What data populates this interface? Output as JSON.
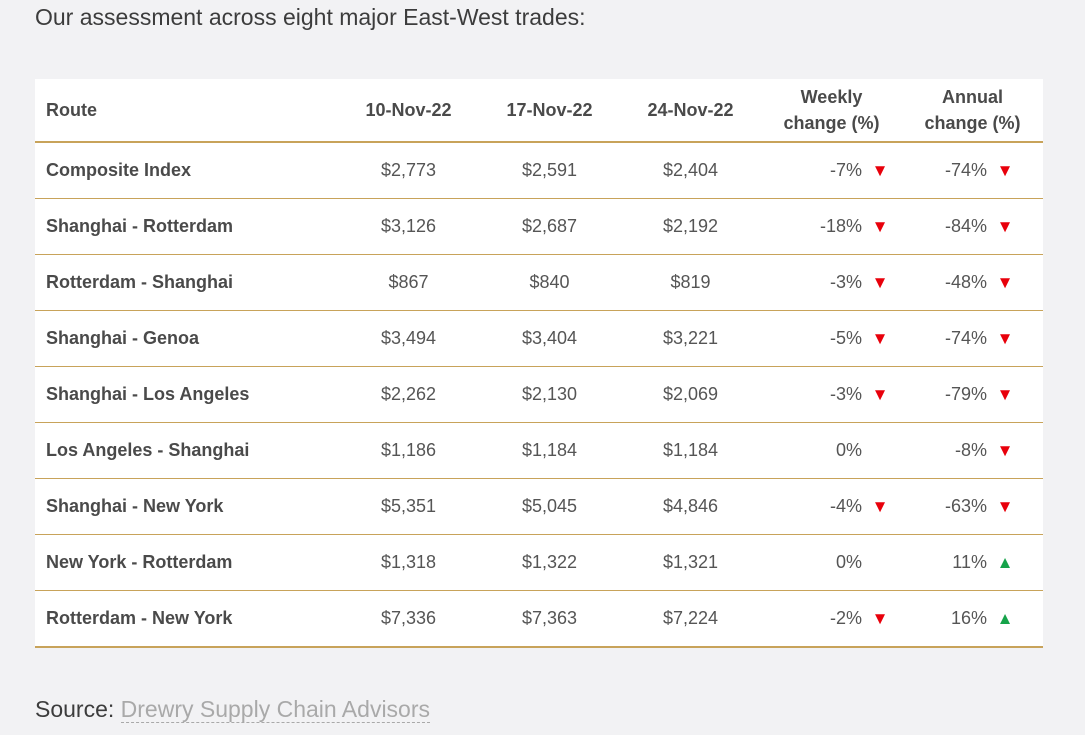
{
  "intro": "Our assessment across eight major East-West trades:",
  "table": {
    "headers": {
      "route": "Route",
      "d1": "10-Nov-22",
      "d2": "17-Nov-22",
      "d3": "24-Nov-22",
      "weekly_line1": "Weekly",
      "weekly_line2": "change (%)",
      "annual_line1": "Annual",
      "annual_line2": "change (%)"
    },
    "rows": [
      {
        "route": "Composite Index",
        "d1": "$2,773",
        "d2": "$2,591",
        "d3": "$2,404",
        "weekly": "-7%",
        "weekly_dir": "down",
        "annual": "-74%",
        "annual_dir": "down"
      },
      {
        "route": "Shanghai - Rotterdam",
        "d1": "$3,126",
        "d2": "$2,687",
        "d3": "$2,192",
        "weekly": "-18%",
        "weekly_dir": "down",
        "annual": "-84%",
        "annual_dir": "down"
      },
      {
        "route": "Rotterdam - Shanghai",
        "d1": "$867",
        "d2": "$840",
        "d3": "$819",
        "weekly": "-3%",
        "weekly_dir": "down",
        "annual": "-48%",
        "annual_dir": "down"
      },
      {
        "route": "Shanghai - Genoa",
        "d1": "$3,494",
        "d2": "$3,404",
        "d3": "$3,221",
        "weekly": "-5%",
        "weekly_dir": "down",
        "annual": "-74%",
        "annual_dir": "down"
      },
      {
        "route": "Shanghai - Los Angeles",
        "d1": "$2,262",
        "d2": "$2,130",
        "d3": "$2,069",
        "weekly": "-3%",
        "weekly_dir": "down",
        "annual": "-79%",
        "annual_dir": "down"
      },
      {
        "route": "Los Angeles - Shanghai",
        "d1": "$1,186",
        "d2": "$1,184",
        "d3": "$1,184",
        "weekly": "0%",
        "weekly_dir": "none",
        "annual": "-8%",
        "annual_dir": "down"
      },
      {
        "route": "Shanghai - New York",
        "d1": "$5,351",
        "d2": "$5,045",
        "d3": "$4,846",
        "weekly": "-4%",
        "weekly_dir": "down",
        "annual": "-63%",
        "annual_dir": "down"
      },
      {
        "route": "New York - Rotterdam",
        "d1": "$1,318",
        "d2": "$1,322",
        "d3": "$1,321",
        "weekly": "0%",
        "weekly_dir": "none",
        "annual": "11%",
        "annual_dir": "up"
      },
      {
        "route": "Rotterdam - New York",
        "d1": "$7,336",
        "d2": "$7,363",
        "d3": "$7,224",
        "weekly": "-2%",
        "weekly_dir": "down",
        "annual": "16%",
        "annual_dir": "up"
      }
    ]
  },
  "source": {
    "label": "Source:",
    "link_text": "Drewry Supply Chain Advisors"
  },
  "colors": {
    "down": "#e8000b",
    "up": "#16a34a",
    "rule": "#c8a35a"
  },
  "icons": {
    "down": "arrow-down-icon",
    "up": "arrow-up-icon"
  }
}
